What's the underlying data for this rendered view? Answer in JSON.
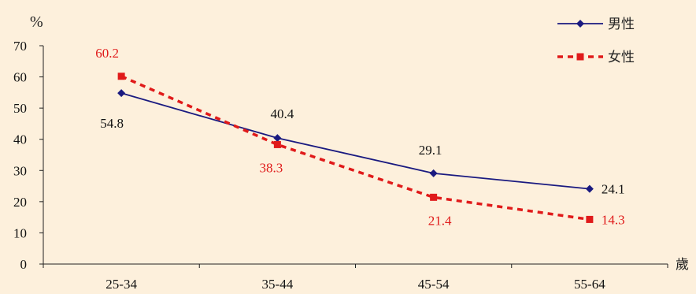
{
  "chart_data": {
    "type": "line",
    "ylabel": "%",
    "xunit": "歲",
    "ylim": [
      0,
      70
    ],
    "yticks": [
      0,
      10,
      20,
      30,
      40,
      50,
      60,
      70
    ],
    "categories": [
      "25-34",
      "35-44",
      "45-54",
      "55-64"
    ],
    "grid": false,
    "legend_position": "top-right",
    "series": [
      {
        "name": "男性",
        "values": [
          54.8,
          40.4,
          29.1,
          24.1
        ],
        "labels": [
          "54.8",
          "40.4",
          "29.1",
          "24.1"
        ],
        "color": "#1a1a80",
        "style": "solid",
        "marker": "diamond"
      },
      {
        "name": "女性",
        "values": [
          60.2,
          38.3,
          21.4,
          14.3
        ],
        "labels": [
          "60.2",
          "38.3",
          "21.4",
          "14.3"
        ],
        "color": "#e01a1a",
        "style": "dashed",
        "marker": "square"
      }
    ]
  }
}
